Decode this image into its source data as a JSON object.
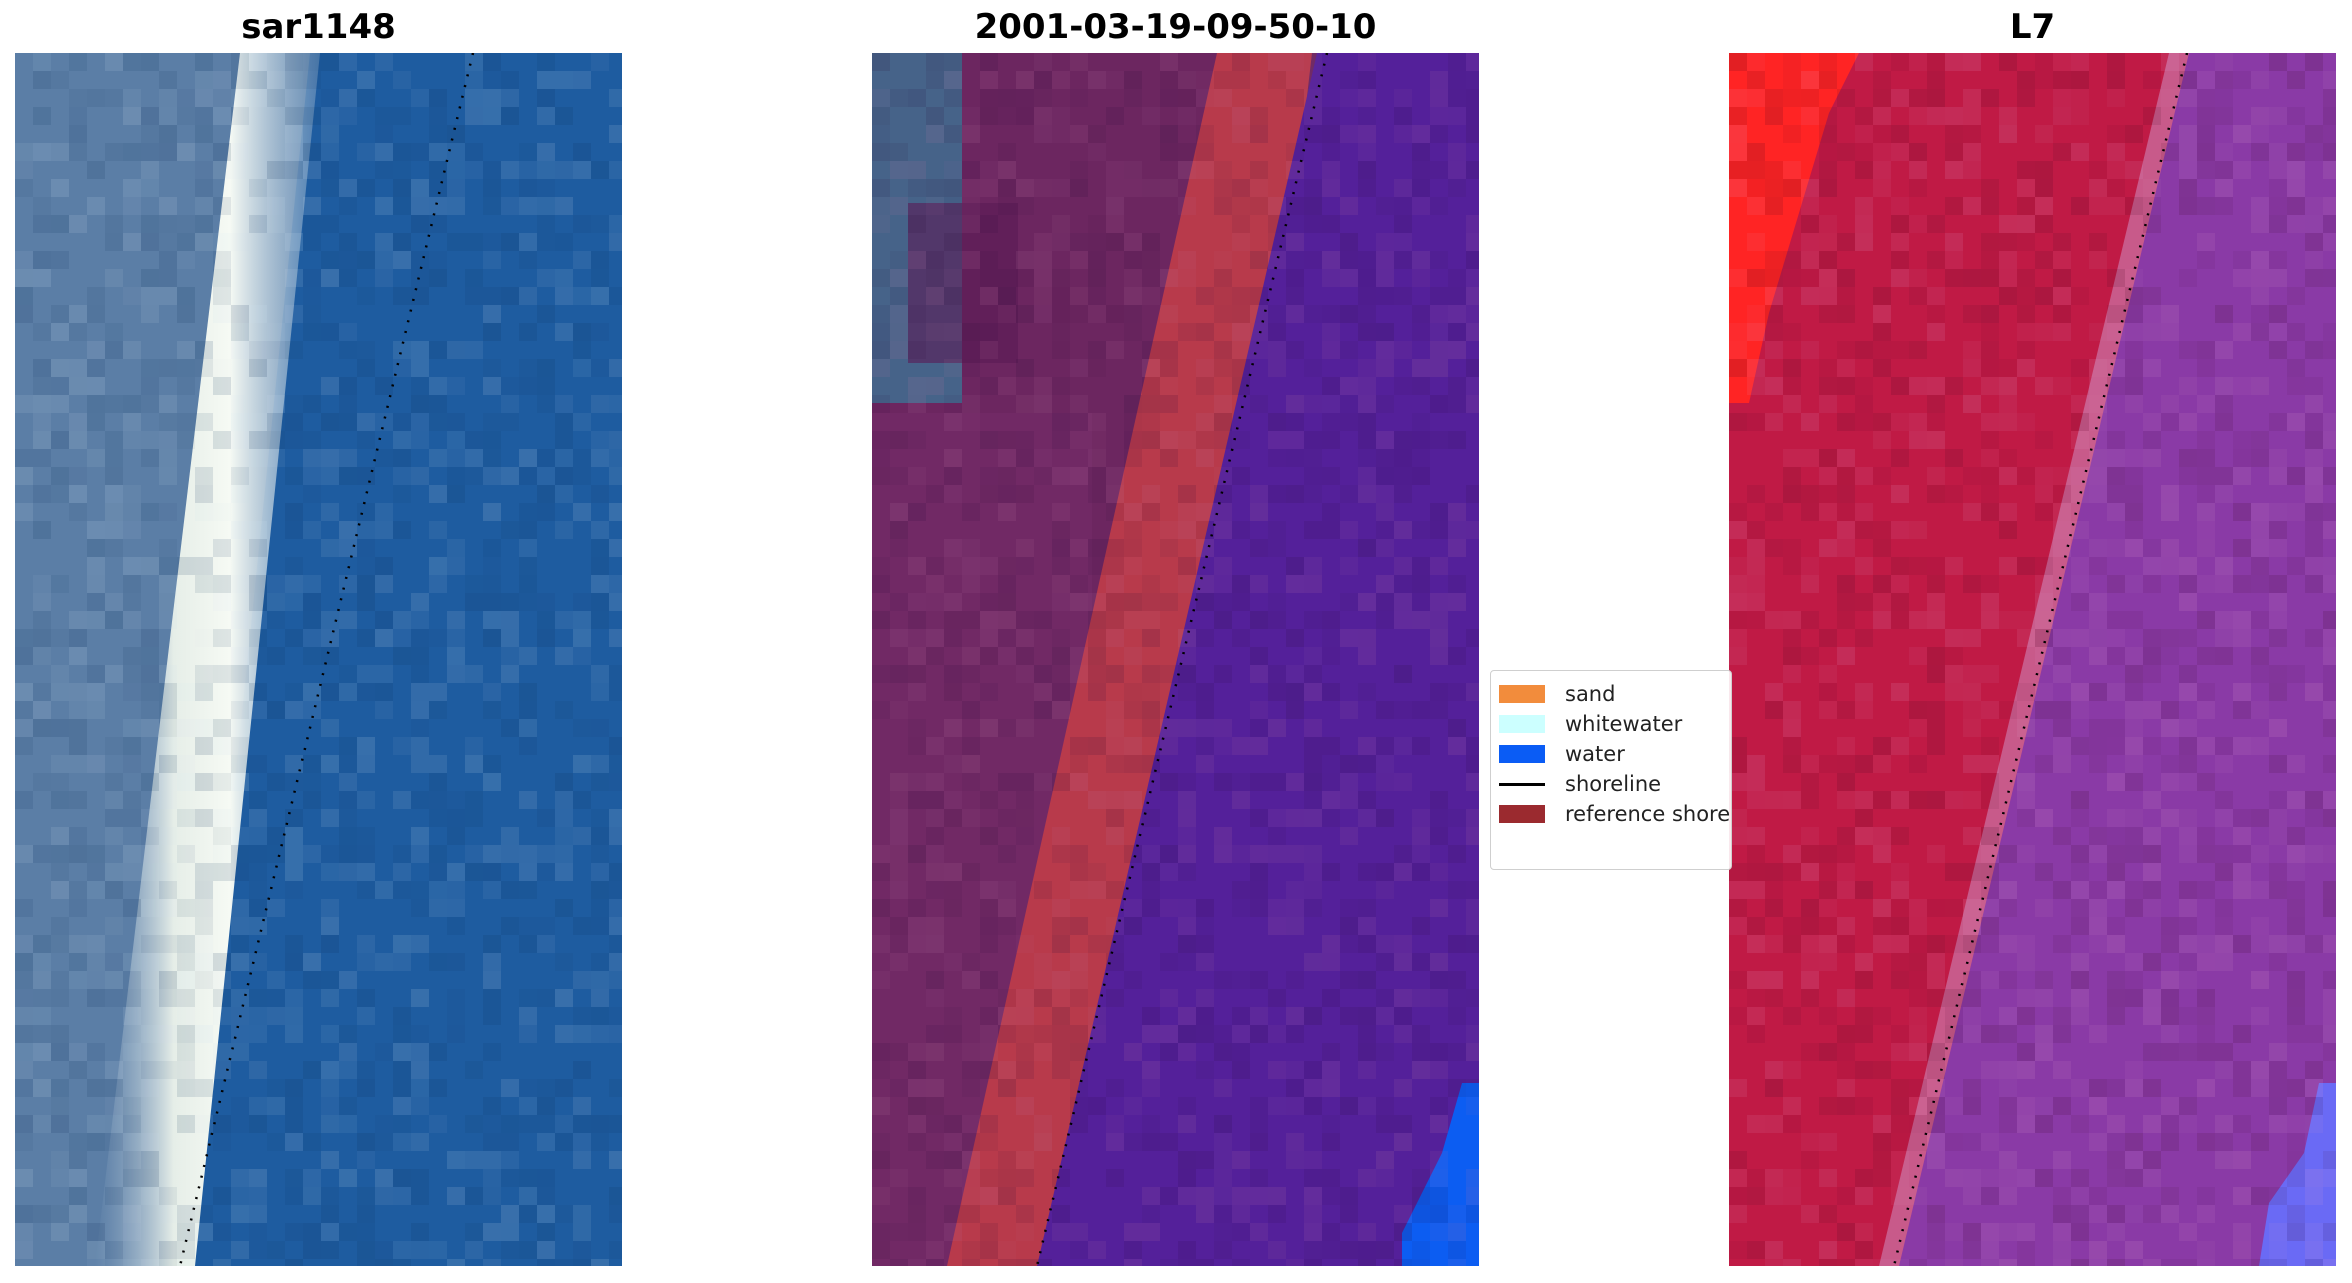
{
  "panels": [
    {
      "title": "sar1148"
    },
    {
      "title": "2001-03-19-09-50-10"
    },
    {
      "title": "L7"
    }
  ],
  "legend": {
    "items": [
      {
        "label": "sand",
        "color": "#f28c3c",
        "type": "patch"
      },
      {
        "label": "whitewater",
        "color": "#ccffff",
        "type": "patch"
      },
      {
        "label": "water",
        "color": "#0a5cf5",
        "type": "patch"
      },
      {
        "label": "shoreline",
        "color": "#000000",
        "type": "line"
      },
      {
        "label": "reference shoreline",
        "color": "#9b2a2f",
        "type": "patch"
      }
    ]
  },
  "colors": {
    "rgb_land": "#5b7ea6",
    "rgb_whitewater": "#f2f7f2",
    "rgb_water": "#1e5ca0",
    "class_land": "#6c2660",
    "class_sand_band": "#b83a4b",
    "class_water": "#54209a",
    "class_blue_corner": "#0c5df2",
    "l7_land": "#c01a45",
    "l7_bright_red": "#ff2424",
    "l7_water": "#8a3aa6",
    "l7_corner": "#6a6af5"
  }
}
